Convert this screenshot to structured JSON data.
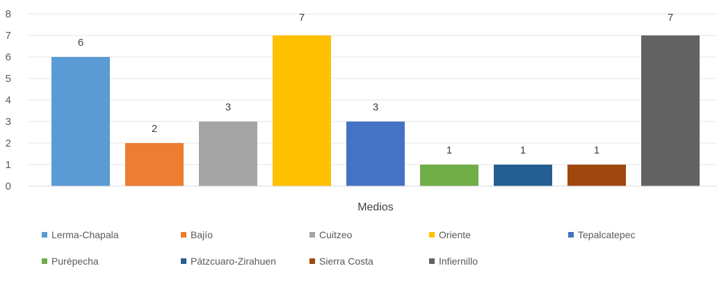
{
  "chart_data": {
    "type": "bar",
    "title": "",
    "xlabel": "Medios",
    "ylabel": "",
    "ylim": [
      0,
      8
    ],
    "yticks": [
      0,
      1,
      2,
      3,
      4,
      5,
      6,
      7,
      8
    ],
    "grid": true,
    "legend_position": "bottom",
    "categories": [
      "Lerma-Chapala",
      "Bajío",
      "Cuitzeo",
      "Oriente",
      "Tepalcatepec",
      "Purépecha",
      "Pátzcuaro-Zirahuen",
      "Sierra Costa",
      "Infiernillo"
    ],
    "values": [
      6,
      2,
      3,
      7,
      3,
      1,
      1,
      1,
      7
    ],
    "colors": [
      "#5B9BD5",
      "#ED7D31",
      "#A5A5A5",
      "#FFC000",
      "#4472C4",
      "#70AD47",
      "#255E91",
      "#9E480E",
      "#636363"
    ]
  }
}
